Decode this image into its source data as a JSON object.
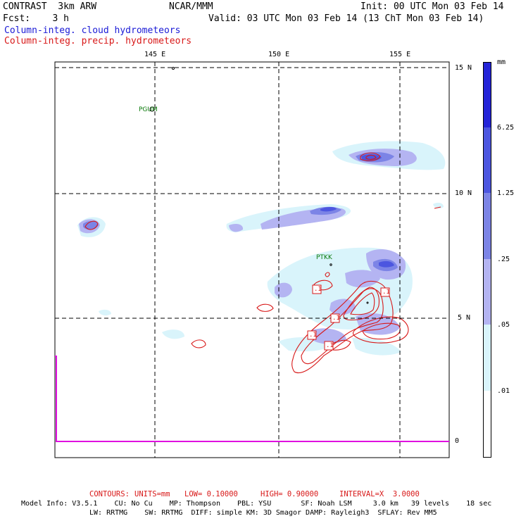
{
  "header": {
    "title_left": "CONTRAST  3km ARW",
    "center": "NCAR/MMM",
    "init": "Init: 00 UTC Mon 03 Feb 14",
    "fcst_label": "Fcst:    3 h",
    "valid": "Valid: 03 UTC Mon 03 Feb 14 (13 ChT Mon 03 Feb 14)",
    "field_cloud": "Column-integ. cloud hydrometeors",
    "field_precip": "Column-integ. precip. hydrometeors"
  },
  "map": {
    "lon_labels": [
      "145 E",
      "150 E",
      "155 E"
    ],
    "lat_labels": [
      "15 N",
      "10 N",
      "5 N"
    ],
    "stations": [
      "PGUM",
      "PTKK"
    ],
    "contour_labels": [
      ".1",
      ".1",
      ".1",
      ".1",
      ".1"
    ],
    "colors": {
      "cloud_lightest": "#d9f4fb",
      "cloud_light": "#b4b4f2",
      "cloud_medium": "#7c84e6",
      "cloud_dark": "#4c56e0",
      "cloud_darkest": "#2424d8",
      "precip_contour": "#d81818",
      "time_series": "#e010e0"
    }
  },
  "colorbar": {
    "unit": "mm",
    "levels": [
      "6.25",
      "1.25",
      ".25",
      ".05",
      ".01"
    ],
    "bottom_value": "0"
  },
  "footer": {
    "contours": {
      "label": "CONTOURS:",
      "units": "UNITS=mm",
      "low": "LOW= 0.10000",
      "high": "HIGH= 0.90000",
      "interval": "INTERVAL=X  3.0000"
    },
    "model_line1": "Model Info: V3.5.1    CU: No Cu    MP: Thompson    PBL: YSU       SF: Noah LSM     3.0 km   39 levels    18 sec",
    "model_line2": "LW: RRTMG    SW: RRTMG  DIFF: simple KM: 3D Smagor DAMP: Rayleigh3  SFLAY: Rev MM5"
  }
}
